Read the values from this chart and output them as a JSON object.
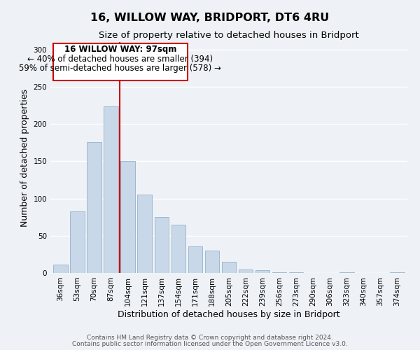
{
  "title": "16, WILLOW WAY, BRIDPORT, DT6 4RU",
  "subtitle": "Size of property relative to detached houses in Bridport",
  "xlabel": "Distribution of detached houses by size in Bridport",
  "ylabel": "Number of detached properties",
  "bar_labels": [
    "36sqm",
    "53sqm",
    "70sqm",
    "87sqm",
    "104sqm",
    "121sqm",
    "137sqm",
    "154sqm",
    "171sqm",
    "188sqm",
    "205sqm",
    "222sqm",
    "239sqm",
    "256sqm",
    "273sqm",
    "290sqm",
    "306sqm",
    "323sqm",
    "340sqm",
    "357sqm",
    "374sqm"
  ],
  "bar_values": [
    11,
    83,
    176,
    224,
    150,
    105,
    75,
    65,
    36,
    30,
    15,
    5,
    4,
    1,
    1,
    0,
    0,
    1,
    0,
    0,
    1
  ],
  "bar_color": "#c8d8e8",
  "bar_edge_color": "#a0b8cc",
  "vline_color": "#cc0000",
  "ylim": [
    0,
    310
  ],
  "yticks": [
    0,
    50,
    100,
    150,
    200,
    250,
    300
  ],
  "annotation_title": "16 WILLOW WAY: 97sqm",
  "annotation_line1": "← 40% of detached houses are smaller (394)",
  "annotation_line2": "59% of semi-detached houses are larger (578) →",
  "box_color": "#ffffff",
  "box_edge_color": "#cc0000",
  "footer_line1": "Contains HM Land Registry data © Crown copyright and database right 2024.",
  "footer_line2": "Contains public sector information licensed under the Open Government Licence v3.0.",
  "background_color": "#eef2f7",
  "grid_color": "#ffffff",
  "title_fontsize": 11.5,
  "subtitle_fontsize": 9.5,
  "axis_label_fontsize": 9,
  "tick_fontsize": 7.5,
  "annotation_fontsize": 8.5,
  "footer_fontsize": 6.5
}
